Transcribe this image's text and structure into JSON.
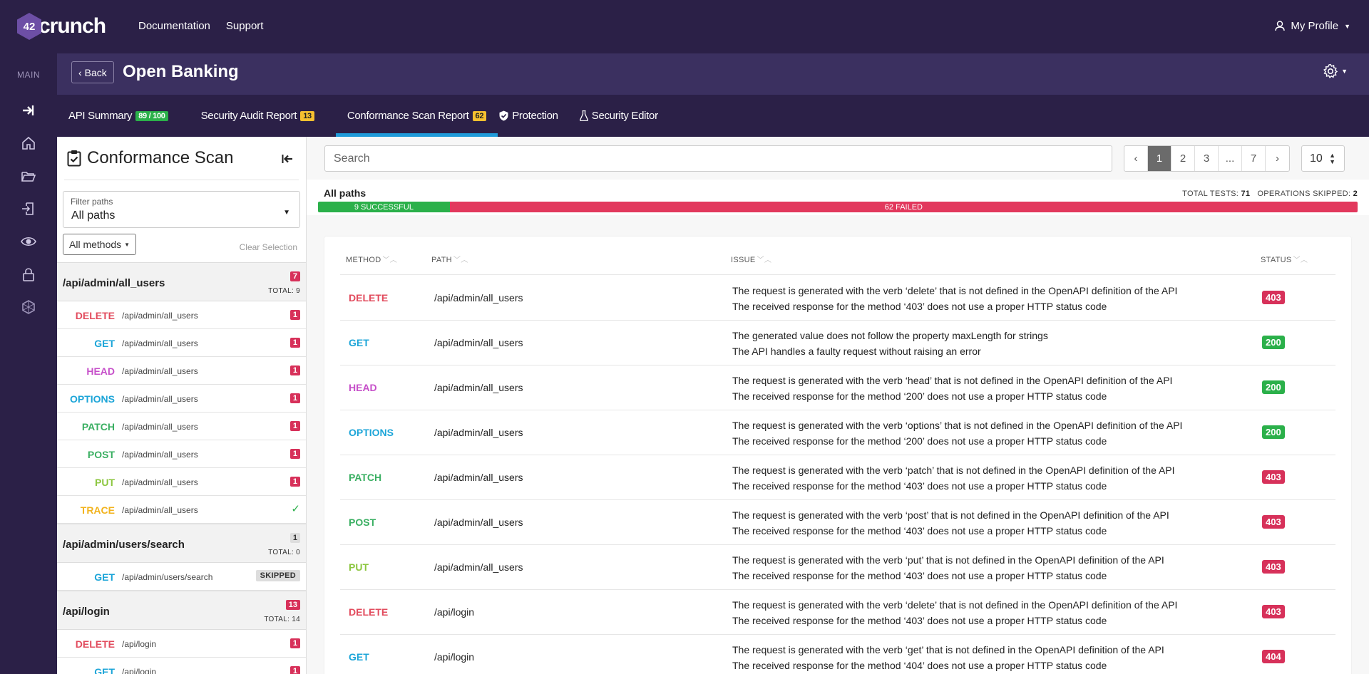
{
  "app": {
    "logo_text": "crunch",
    "logo_prefix": "42",
    "nav": [
      "Documentation",
      "Support"
    ],
    "profile_label": "My Profile"
  },
  "rail": {
    "section_label": "MAIN",
    "icons": [
      "sign-in-icon",
      "home-icon",
      "folder-open-icon",
      "import-icon",
      "eye-icon",
      "lock-icon",
      "hexagon-icon"
    ]
  },
  "header": {
    "back_label": "Back",
    "title": "Open Banking"
  },
  "tabs": [
    {
      "label": "API Summary",
      "badge": "89 / 100",
      "badge_color": "#2bb04a"
    },
    {
      "label": "Security Audit Report",
      "badge": "13",
      "badge_color": "#f6c030"
    },
    {
      "label": "Conformance Scan Report",
      "badge": "62",
      "badge_color": "#f6c030",
      "active": true
    },
    {
      "label": "Protection",
      "icon": "shield-check-icon"
    },
    {
      "label": "Security Editor",
      "icon": "flask-icon"
    }
  ],
  "left": {
    "title": "Conformance Scan",
    "filter_label": "Filter paths",
    "filter_value": "All paths",
    "methods_label": "All methods",
    "clear_label": "Clear Selection",
    "groups": [
      {
        "path": "/api/admin/all_users",
        "count": "7",
        "total": "TOTAL: 9",
        "ops": [
          {
            "method": "DELETE",
            "path": "/api/admin/all_users",
            "flag": "1"
          },
          {
            "method": "GET",
            "path": "/api/admin/all_users",
            "flag": "1"
          },
          {
            "method": "HEAD",
            "path": "/api/admin/all_users",
            "flag": "1"
          },
          {
            "method": "OPTIONS",
            "path": "/api/admin/all_users",
            "flag": "1"
          },
          {
            "method": "PATCH",
            "path": "/api/admin/all_users",
            "flag": "1"
          },
          {
            "method": "POST",
            "path": "/api/admin/all_users",
            "flag": "1"
          },
          {
            "method": "PUT",
            "path": "/api/admin/all_users",
            "flag": "1"
          },
          {
            "method": "TRACE",
            "path": "/api/admin/all_users",
            "flag": "✓"
          }
        ]
      },
      {
        "path": "/api/admin/users/search",
        "count": "1",
        "total": "TOTAL: 0",
        "ops": [
          {
            "method": "GET",
            "path": "/api/admin/users/search",
            "flag": "SKIPPED"
          }
        ]
      },
      {
        "path": "/api/login",
        "count": "13",
        "total": "TOTAL: 14",
        "ops": [
          {
            "method": "DELETE",
            "path": "/api/login",
            "flag": "1"
          },
          {
            "method": "GET",
            "path": "/api/login",
            "flag": "1"
          }
        ]
      }
    ]
  },
  "search": {
    "placeholder": "Search"
  },
  "pager": {
    "pages": [
      "1",
      "2",
      "3",
      "...",
      "7"
    ],
    "current": "1",
    "prev": "‹",
    "next": "›",
    "per_page": "10"
  },
  "summary": {
    "label": "All paths",
    "total_tests_label": "TOTAL TESTS:",
    "total_tests": "71",
    "skipped_label": "OPERATIONS SKIPPED:",
    "skipped": "2",
    "successful": 9,
    "failed": 62,
    "successful_text": "9 SUCCESSFUL",
    "failed_text": "62 FAILED"
  },
  "table": {
    "headers": [
      "METHOD",
      "PATH",
      "ISSUE",
      "STATUS"
    ],
    "rows": [
      {
        "method": "DELETE",
        "path": "/api/admin/all_users",
        "issue1": "The request is generated with the verb ‘delete’ that is not defined in the OpenAPI definition of the API",
        "issue2": "The received response for the method ‘403’ does not use a proper HTTP status code",
        "status": "403"
      },
      {
        "method": "GET",
        "path": "/api/admin/all_users",
        "issue1": "The generated value does not follow the property maxLength for strings",
        "issue2": "The API handles a faulty request without raising an error",
        "status": "200"
      },
      {
        "method": "HEAD",
        "path": "/api/admin/all_users",
        "issue1": "The request is generated with the verb ‘head’ that is not defined in the OpenAPI definition of the API",
        "issue2": "The received response for the method ‘200’ does not use a proper HTTP status code",
        "status": "200"
      },
      {
        "method": "OPTIONS",
        "path": "/api/admin/all_users",
        "issue1": "The request is generated with the verb ‘options’ that is not defined in the OpenAPI definition of the API",
        "issue2": "The received response for the method ‘200’ does not use a proper HTTP status code",
        "status": "200"
      },
      {
        "method": "PATCH",
        "path": "/api/admin/all_users",
        "issue1": "The request is generated with the verb ‘patch’ that is not defined in the OpenAPI definition of the API",
        "issue2": "The received response for the method ‘403’ does not use a proper HTTP status code",
        "status": "403"
      },
      {
        "method": "POST",
        "path": "/api/admin/all_users",
        "issue1": "The request is generated with the verb ‘post’ that is not defined in the OpenAPI definition of the API",
        "issue2": "The received response for the method ‘403’ does not use a proper HTTP status code",
        "status": "403"
      },
      {
        "method": "PUT",
        "path": "/api/admin/all_users",
        "issue1": "The request is generated with the verb ‘put’ that is not defined in the OpenAPI definition of the API",
        "issue2": "The received response for the method ‘403’ does not use a proper HTTP status code",
        "status": "403"
      },
      {
        "method": "DELETE",
        "path": "/api/login",
        "issue1": "The request is generated with the verb ‘delete’ that is not defined in the OpenAPI definition of the API",
        "issue2": "The received response for the method ‘403’ does not use a proper HTTP status code",
        "status": "403"
      },
      {
        "method": "GET",
        "path": "/api/login",
        "issue1": "The request is generated with the verb ‘get’ that is not defined in the OpenAPI definition of the API",
        "issue2": "The received response for the method ‘404’ does not use a proper HTTP status code",
        "status": "404"
      }
    ]
  },
  "colors": {
    "nav_bg": "#2b2047",
    "header_bg": "#3b3060",
    "tab_underline": "#1f9bd9",
    "success": "#2bb04a",
    "failure": "#e2385d"
  }
}
